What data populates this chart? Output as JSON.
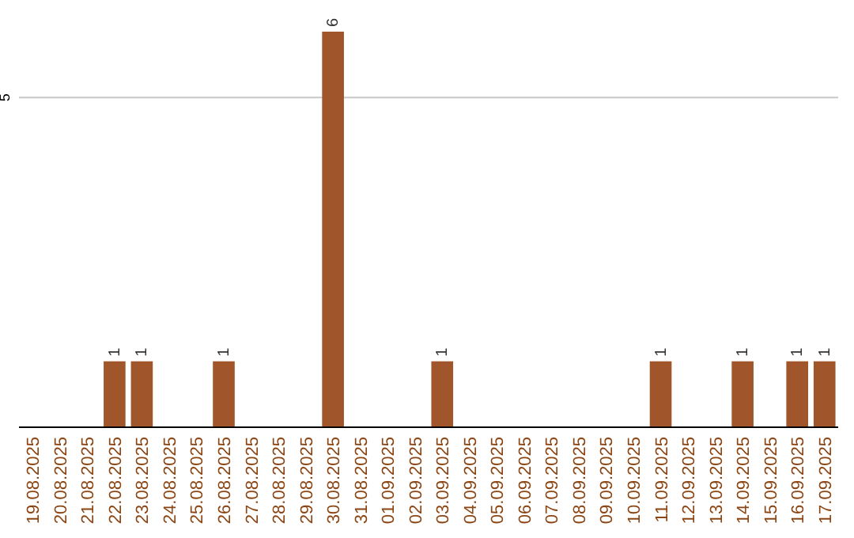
{
  "chart_data": {
    "type": "bar",
    "categories": [
      "19.08.2025",
      "20.08.2025",
      "21.08.2025",
      "22.08.2025",
      "23.08.2025",
      "24.08.2025",
      "25.08.2025",
      "26.08.2025",
      "27.08.2025",
      "28.08.2025",
      "29.08.2025",
      "30.08.2025",
      "31.08.2025",
      "01.09.2025",
      "02.09.2025",
      "03.09.2025",
      "04.09.2025",
      "05.09.2025",
      "06.09.2025",
      "07.09.2025",
      "08.09.2025",
      "09.09.2025",
      "10.09.2025",
      "11.09.2025",
      "12.09.2025",
      "13.09.2025",
      "14.09.2025",
      "15.09.2025",
      "16.09.2025",
      "17.09.2025"
    ],
    "values": [
      0,
      0,
      0,
      1,
      1,
      0,
      0,
      1,
      0,
      0,
      0,
      6,
      0,
      0,
      0,
      1,
      0,
      0,
      0,
      0,
      0,
      0,
      0,
      1,
      0,
      0,
      1,
      0,
      1,
      1
    ],
    "value_labels": [
      null,
      null,
      null,
      "1",
      "1",
      null,
      null,
      "1",
      null,
      null,
      null,
      "6",
      null,
      null,
      null,
      "1",
      null,
      null,
      null,
      null,
      null,
      null,
      null,
      "1",
      null,
      null,
      "1",
      null,
      "1",
      "1"
    ],
    "color": "#a0562a",
    "ylim": [
      0,
      6
    ],
    "yticks": [
      5
    ],
    "grid": "y"
  }
}
